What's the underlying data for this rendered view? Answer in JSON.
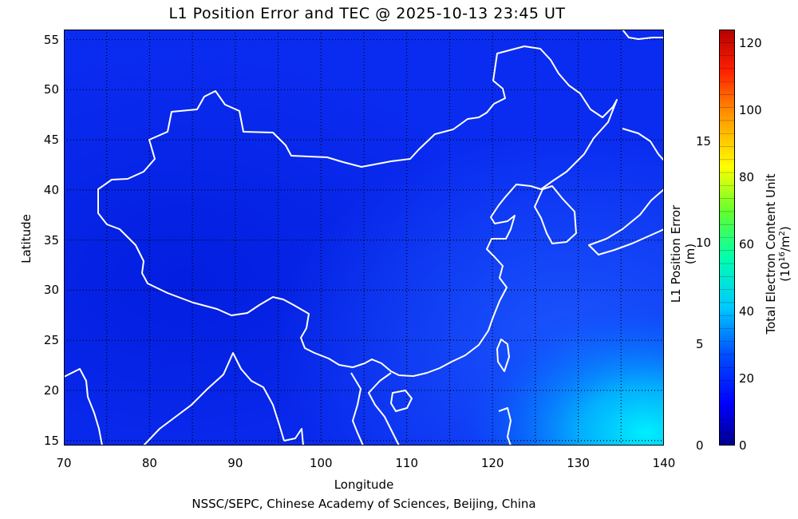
{
  "title": "L1 Position Error and TEC @ 2025-10-13 23:45 UT",
  "footer": "NSSC/SEPC, Chinese Academy of Sciences, Beijing, China",
  "x_axis": {
    "label": "Longitude",
    "ticks": [
      "70",
      "80",
      "90",
      "100",
      "110",
      "120",
      "130",
      "140"
    ],
    "range": [
      70,
      140
    ]
  },
  "y_axis": {
    "label": "Latitude",
    "ticks": [
      "15",
      "20",
      "25",
      "30",
      "35",
      "40",
      "45",
      "50",
      "55"
    ],
    "range": [
      14.5,
      56
    ]
  },
  "position_error_axis": {
    "label": "L1 Position Error (m)",
    "ticks": [
      "0",
      "5",
      "10",
      "15"
    ]
  },
  "tec_colorbar": {
    "label_prefix": "Total Electron Content Unit (10",
    "label_exp1": "16",
    "label_mid": "/m",
    "label_exp2": "2",
    "label_suffix": ")",
    "ticks": [
      "0",
      "20",
      "40",
      "60",
      "80",
      "100",
      "120"
    ],
    "colors": [
      "#00008c",
      "#0000ff",
      "#0050ff",
      "#00c8ff",
      "#00ffb0",
      "#60ff30",
      "#ffff00",
      "#ff9000",
      "#ff2000",
      "#b40000"
    ]
  },
  "map_colors": {
    "background": "#0a2cf0",
    "coast": "#ffffff",
    "grid": "#000000"
  }
}
